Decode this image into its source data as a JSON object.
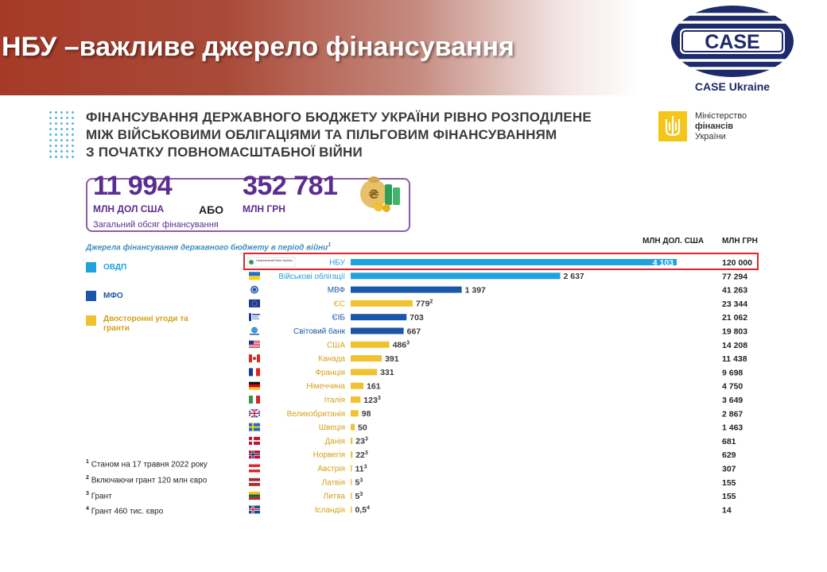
{
  "slide": {
    "title": "НБУ –важливе джерело фінансування"
  },
  "logo": {
    "text": "CASE",
    "subtitle": "CASE Ukraine"
  },
  "infographic": {
    "headline_lines": [
      "ФІНАНСУВАННЯ ДЕРЖАВНОГО БЮДЖЕТУ УКРАЇНИ РІВНО РОЗПОДІЛЕНЕ",
      "МІЖ ВІЙСЬКОВИМИ ОБЛІГАЦІЯМИ ТА ПІЛЬГОВИМ ФІНАНСУВАННЯМ",
      "З ПОЧАТКУ ПОВНОМАСШТАБНОЇ ВІЙНИ"
    ],
    "ministry": {
      "line1": "Міністерство",
      "line2": "фінансів",
      "line3": "України"
    },
    "total": {
      "usd_value": "11 994",
      "usd_unit": "МЛН ДОЛ США",
      "or": "АБО",
      "uah_value": "352 781",
      "uah_unit": "МЛН ГРН",
      "caption": "Загальний обсяг фінансування"
    },
    "sources_title": "Джерела фінансування державного бюджету в період війни",
    "sources_title_sup": "1",
    "col_usd": "МЛН ДОЛ. США",
    "col_uah": "МЛН ГРН",
    "nbu_logo_text": "Національний банк України",
    "legend": [
      {
        "label": "ОВДП",
        "color": "#1fa3de"
      },
      {
        "label": "МФО",
        "color": "#1b57a8"
      },
      {
        "label": "Двосторонні угоди та гранти",
        "color": "#f2c130"
      }
    ],
    "footnotes": [
      {
        "num": "1",
        "text": "Станом на 17 травня 2022 року"
      },
      {
        "num": "2",
        "text": "Включаючи грант 120 млн євро"
      },
      {
        "num": "3",
        "text": "Грант"
      },
      {
        "num": "4",
        "text": "Грант 460 тис. євро"
      }
    ]
  },
  "chart_data": {
    "type": "bar",
    "orientation": "horizontal",
    "categories": [
      "НБУ",
      "Військові облігації",
      "МВФ",
      "ЄС",
      "ЄІБ",
      "Світовий банк",
      "США",
      "Канада",
      "Франція",
      "Німеччина",
      "Італія",
      "Великобританія",
      "Швеція",
      "Данія",
      "Норвегія",
      "Австрія",
      "Латвія",
      "Литва",
      "Ісландія"
    ],
    "values_usd": [
      4103,
      2637,
      1397,
      779,
      703,
      667,
      486,
      391,
      331,
      161,
      123,
      98,
      50,
      23,
      22,
      11,
      5,
      5,
      0.5
    ],
    "value_labels": [
      "4 103",
      "2 637",
      "1 397",
      "779",
      "703",
      "667",
      "486",
      "391",
      "331",
      "161",
      "123",
      "98",
      "50",
      "23",
      "22",
      "11",
      "5",
      "5",
      "0,5"
    ],
    "value_sups": [
      "",
      "",
      "",
      "2",
      "",
      "",
      "3",
      "",
      "",
      "",
      "3",
      "",
      "",
      "3",
      "3",
      "3",
      "3",
      "3",
      "4"
    ],
    "values_uah_labels": [
      "120 000",
      "77 294",
      "41 263",
      "23 344",
      "21 062",
      "19 803",
      "14 208",
      "11 438",
      "9 698",
      "4 750",
      "3 649",
      "2 867",
      "1 463",
      "681",
      "629",
      "307",
      "155",
      "155",
      "14"
    ],
    "groups": [
      "ОВДП",
      "ОВДП",
      "МФО",
      "Двосторонні угоди та гранти",
      "МФО",
      "МФО",
      "Двосторонні угоди та гранти",
      "Двосторонні угоди та гранти",
      "Двосторонні угоди та гранти",
      "Двосторонні угоди та гранти",
      "Двосторонні угоди та гранти",
      "Двосторонні угоди та гранти",
      "Двосторонні угоди та гранти",
      "Двосторонні угоди та гранти",
      "Двосторонні угоди та гранти",
      "Двосторонні угоди та гранти",
      "Двосторонні угоди та гранти",
      "Двосторонні угоди та гранти",
      "Двосторонні угоди та гранти"
    ],
    "group_colors": {
      "ОВДП": "#1fa3de",
      "МФО": "#1b57a8",
      "Двосторонні угоди та гранти": "#f2c130"
    },
    "label_colors": {
      "ОВДП": "#1fa3de",
      "МФО": "#1b57a8",
      "Двосторонні угоди та гранти": "#d4a017"
    },
    "flags": [
      "nbu",
      "ua",
      "imf",
      "eu",
      "eib",
      "wb",
      "us",
      "ca",
      "fr",
      "de",
      "it",
      "gb",
      "se",
      "dk",
      "no",
      "at",
      "lv",
      "lt",
      "is"
    ],
    "highlighted": [
      "НБУ"
    ]
  }
}
